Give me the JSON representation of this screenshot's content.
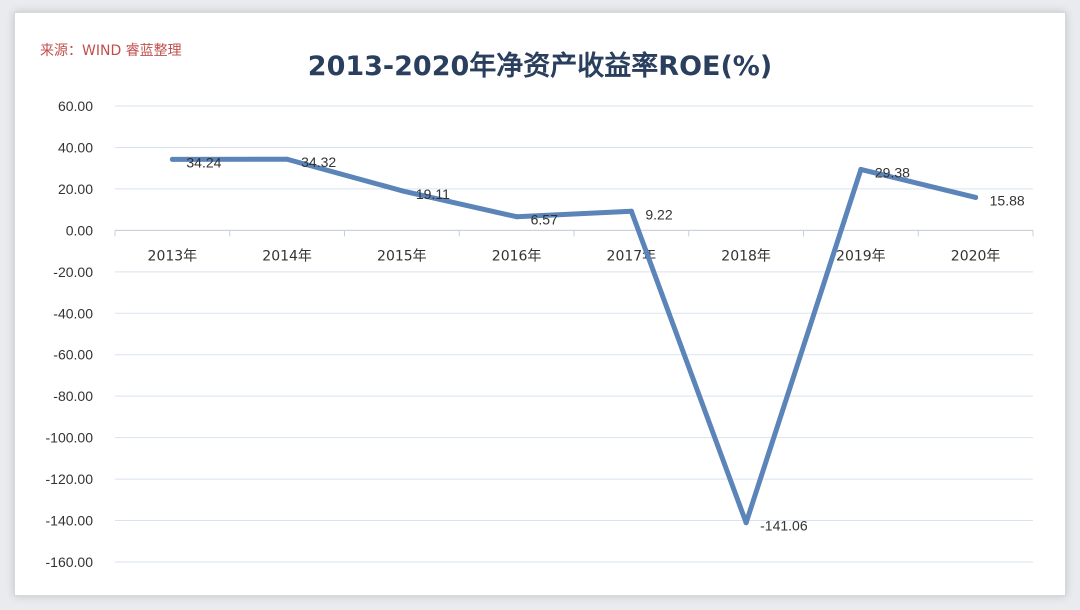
{
  "source": "来源：WIND 睿蓝整理",
  "chart_data": {
    "type": "line",
    "title": "2013-2020年净资产收益率ROE(%)",
    "xlabel": "",
    "ylabel": "",
    "categories": [
      "2013年",
      "2014年",
      "2015年",
      "2016年",
      "2017年",
      "2018年",
      "2019年",
      "2020年"
    ],
    "series": [
      {
        "values": [
          34.24,
          34.32,
          19.11,
          6.57,
          9.22,
          -141.06,
          29.38,
          15.88
        ],
        "labels": [
          "34.24",
          "34.32",
          "19.11",
          "6.57",
          "9.22",
          "-141.06",
          "29.38",
          "15.88"
        ]
      }
    ],
    "ylim": [
      -160,
      60
    ],
    "yticks": [
      60,
      40,
      20,
      0,
      -20,
      -40,
      -60,
      -80,
      -100,
      -120,
      -140,
      -160
    ],
    "ytick_labels": [
      "60.00",
      "40.00",
      "20.00",
      "0.00",
      "-20.00",
      "-40.00",
      "-60.00",
      "-80.00",
      "-100.00",
      "-120.00",
      "-140.00",
      "-160.00"
    ],
    "grid": true,
    "legend": "none",
    "line_color": "#5b84b8",
    "grid_color": "#d9e3f0"
  }
}
